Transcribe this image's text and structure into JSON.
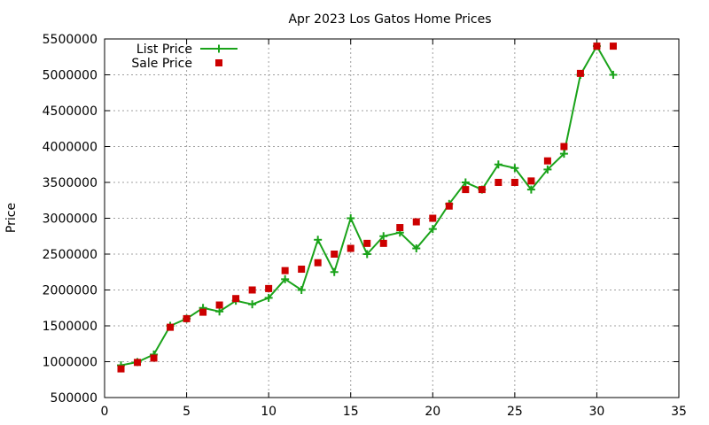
{
  "chart_data": {
    "type": "line",
    "title": "Apr 2023 Los Gatos Home Prices",
    "xlabel": "",
    "ylabel": "Price",
    "xlim": [
      0,
      35
    ],
    "ylim": [
      500000,
      5500000
    ],
    "x_ticks": [
      0,
      5,
      10,
      15,
      20,
      25,
      30,
      35
    ],
    "y_ticks": [
      500000,
      1000000,
      1500000,
      2000000,
      2500000,
      3000000,
      3500000,
      4000000,
      4500000,
      5000000,
      5500000
    ],
    "x_tick_labels": [
      "0",
      "5",
      "10",
      "15",
      "20",
      "25",
      "30",
      "35"
    ],
    "y_tick_labels": [
      "500000",
      "1000000",
      "1500000",
      "2000000",
      "2500000",
      "3000000",
      "3500000",
      "4000000",
      "4500000",
      "5000000",
      "5500000"
    ],
    "grid": true,
    "legend_position": "top-left",
    "series": [
      {
        "name": "List Price",
        "style": "line-points",
        "marker": "plus",
        "color": "#1aa31a",
        "x": [
          1,
          2,
          3,
          4,
          5,
          6,
          7,
          8,
          9,
          10,
          11,
          12,
          13,
          14,
          15,
          16,
          17,
          18,
          19,
          20,
          21,
          22,
          23,
          24,
          25,
          26,
          27,
          28,
          29,
          30,
          31
        ],
        "y": [
          950000,
          995000,
          1100000,
          1500000,
          1600000,
          1750000,
          1700000,
          1850000,
          1800000,
          1890000,
          2150000,
          2000000,
          2700000,
          2250000,
          3000000,
          2500000,
          2750000,
          2800000,
          2580000,
          2850000,
          3200000,
          3500000,
          3400000,
          3750000,
          3700000,
          3400000,
          3680000,
          3900000,
          5000000,
          5400000,
          5000000
        ]
      },
      {
        "name": "Sale Price",
        "style": "points",
        "marker": "square",
        "color": "#cc0000",
        "x": [
          1,
          2,
          3,
          4,
          5,
          6,
          7,
          8,
          9,
          10,
          11,
          12,
          13,
          14,
          15,
          16,
          17,
          18,
          19,
          20,
          21,
          22,
          23,
          24,
          25,
          26,
          27,
          28,
          29,
          30,
          31
        ],
        "y": [
          900000,
          990000,
          1050000,
          1480000,
          1600000,
          1690000,
          1790000,
          1880000,
          2000000,
          2020000,
          2270000,
          2290000,
          2380000,
          2500000,
          2580000,
          2650000,
          2650000,
          2870000,
          2950000,
          3000000,
          3170000,
          3400000,
          3400000,
          3500000,
          3500000,
          3520000,
          3800000,
          4000000,
          5020000,
          5400000,
          5400000
        ]
      }
    ]
  }
}
